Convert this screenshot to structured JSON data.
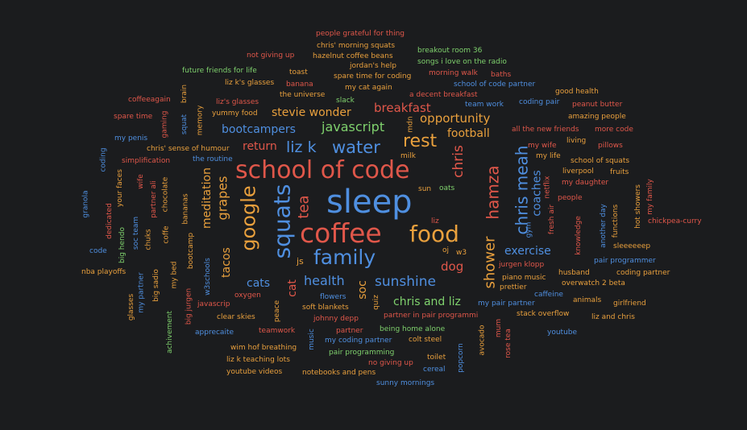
{
  "word_cloud": {
    "words": [
      {
        "text": "people grateful for thing",
        "color": "#e0574a"
      },
      {
        "text": "chris' morning squats",
        "color": "#e9a03d"
      },
      {
        "text": "breakout room 36",
        "color": "#7fd16d"
      },
      {
        "text": "not giving up",
        "color": "#e0574a"
      },
      {
        "text": "hazelnut coffee beans",
        "color": "#e9a03d"
      },
      {
        "text": "songs i love on the radio",
        "color": "#7fd16d"
      },
      {
        "text": "future friends for life",
        "color": "#7fd16d"
      },
      {
        "text": "toast",
        "color": "#e9a03d"
      },
      {
        "text": "jordan's help",
        "color": "#e9a03d"
      },
      {
        "text": "morning walk",
        "color": "#e0574a"
      },
      {
        "text": "baths",
        "color": "#e0574a"
      },
      {
        "text": "liz k's glasses",
        "color": "#e9a03d"
      },
      {
        "text": "banana",
        "color": "#e0574a"
      },
      {
        "text": "spare time for coding",
        "color": "#e9a03d"
      },
      {
        "text": "school of code partner",
        "color": "#4f8fe0"
      },
      {
        "text": "my cat again",
        "color": "#e9a03d"
      },
      {
        "text": "the universe",
        "color": "#e9a03d"
      },
      {
        "text": "a decent breakfast",
        "color": "#e0574a"
      },
      {
        "text": "good health",
        "color": "#e9a03d"
      },
      {
        "text": "coffeeagain",
        "color": "#e0574a"
      },
      {
        "text": "brain",
        "color": "#e9a03d"
      },
      {
        "text": "liz's glasses",
        "color": "#e0574a"
      },
      {
        "text": "slack",
        "color": "#7fd16d"
      },
      {
        "text": "team work",
        "color": "#4f8fe0"
      },
      {
        "text": "coding pair",
        "color": "#4f8fe0"
      },
      {
        "text": "peanut butter",
        "color": "#e0574a"
      },
      {
        "text": "yummy food",
        "color": "#e9a03d"
      },
      {
        "text": "stevie wonder",
        "color": "#e9a03d"
      },
      {
        "text": "breakfast",
        "color": "#e0574a"
      },
      {
        "text": "amazing people",
        "color": "#e9a03d"
      },
      {
        "text": "spare time",
        "color": "#e0574a"
      },
      {
        "text": "gaming",
        "color": "#e0574a"
      },
      {
        "text": "squat",
        "color": "#4f8fe0"
      },
      {
        "text": "memory",
        "color": "#e9a03d"
      },
      {
        "text": "mdn",
        "color": "#e9a03d"
      },
      {
        "text": "opportunity",
        "color": "#e9a03d"
      },
      {
        "text": "bootcampers",
        "color": "#4f8fe0"
      },
      {
        "text": "javascript",
        "color": "#7fd16d"
      },
      {
        "text": "all the new friends",
        "color": "#e0574a"
      },
      {
        "text": "more code",
        "color": "#e0574a"
      },
      {
        "text": "my penis",
        "color": "#4f8fe0"
      },
      {
        "text": "football",
        "color": "#e9a03d"
      },
      {
        "text": "living",
        "color": "#e9a03d"
      },
      {
        "text": "rest",
        "color": "#e9a03d"
      },
      {
        "text": "my wife",
        "color": "#e0574a"
      },
      {
        "text": "pillows",
        "color": "#e0574a"
      },
      {
        "text": "chris' sense of humour",
        "color": "#e9a03d"
      },
      {
        "text": "return",
        "color": "#e0574a"
      },
      {
        "text": "liz k",
        "color": "#4f8fe0"
      },
      {
        "text": "water",
        "color": "#4f8fe0"
      },
      {
        "text": "chris",
        "color": "#e0574a"
      },
      {
        "text": "my life",
        "color": "#e9a03d"
      },
      {
        "text": "coding",
        "color": "#4f8fe0"
      },
      {
        "text": "milk",
        "color": "#e9a03d"
      },
      {
        "text": "school of squats",
        "color": "#e9a03d"
      },
      {
        "text": "simplification",
        "color": "#e0574a"
      },
      {
        "text": "the routine",
        "color": "#4f8fe0"
      },
      {
        "text": "fruits",
        "color": "#e9a03d"
      },
      {
        "text": "liverpool",
        "color": "#e9a03d"
      },
      {
        "text": "school of code",
        "color": "#e0574a"
      },
      {
        "text": "your faces",
        "color": "#e9a03d"
      },
      {
        "text": "wife",
        "color": "#e0574a"
      },
      {
        "text": "meditation",
        "color": "#e9a03d"
      },
      {
        "text": "grapes",
        "color": "#e9a03d"
      },
      {
        "text": "coaches",
        "color": "#4f8fe0"
      },
      {
        "text": "netflix",
        "color": "#e0574a"
      },
      {
        "text": "my daughter",
        "color": "#e0574a"
      },
      {
        "text": "granola",
        "color": "#4f8fe0"
      },
      {
        "text": "partner ali",
        "color": "#e0574a"
      },
      {
        "text": "chocolate",
        "color": "#e9a03d"
      },
      {
        "text": "sun",
        "color": "#e9a03d"
      },
      {
        "text": "oats",
        "color": "#7fd16d"
      },
      {
        "text": "hot showers",
        "color": "#e9a03d"
      },
      {
        "text": "my family",
        "color": "#e0574a"
      },
      {
        "text": "hamza",
        "color": "#e0574a"
      },
      {
        "text": "chris meah",
        "color": "#4f8fe0"
      },
      {
        "text": "sleep",
        "color": "#4f8fe0"
      },
      {
        "text": "people",
        "color": "#e0574a"
      },
      {
        "text": "google",
        "color": "#e9a03d"
      },
      {
        "text": "squats",
        "color": "#4f8fe0"
      },
      {
        "text": "tea",
        "color": "#e0574a"
      },
      {
        "text": "bananas",
        "color": "#e9a03d"
      },
      {
        "text": "dedicated",
        "color": "#e0574a"
      },
      {
        "text": "big hendo",
        "color": "#7fd16d"
      },
      {
        "text": "soc team",
        "color": "#4f8fe0"
      },
      {
        "text": "fresh air",
        "color": "#e0574a"
      },
      {
        "text": "knowledge",
        "color": "#e0574a"
      },
      {
        "text": "another day",
        "color": "#4f8fe0"
      },
      {
        "text": "functions",
        "color": "#e9a03d"
      },
      {
        "text": "chickpea-curry",
        "color": "#e0574a"
      },
      {
        "text": "coffee",
        "color": "#e0574a"
      },
      {
        "text": "food",
        "color": "#e9a03d"
      },
      {
        "text": "chuks",
        "color": "#e9a03d"
      },
      {
        "text": "coffe",
        "color": "#e9a03d"
      },
      {
        "text": "liz",
        "color": "#e0574a"
      },
      {
        "text": "gym",
        "color": "#4f8fe0"
      },
      {
        "text": "tacos",
        "color": "#e9a03d"
      },
      {
        "text": "bootcamp",
        "color": "#e9a03d"
      },
      {
        "text": "family",
        "color": "#4f8fe0"
      },
      {
        "text": "sleeeeeep",
        "color": "#e9a03d"
      },
      {
        "text": "code",
        "color": "#4f8fe0"
      },
      {
        "text": "oj",
        "color": "#e9a03d"
      },
      {
        "text": "w3",
        "color": "#e9a03d"
      },
      {
        "text": "shower",
        "color": "#e9a03d"
      },
      {
        "text": "exercise",
        "color": "#4f8fe0"
      },
      {
        "text": "pair programmer",
        "color": "#4f8fe0"
      },
      {
        "text": "js",
        "color": "#e9a03d"
      },
      {
        "text": "dog",
        "color": "#e0574a"
      },
      {
        "text": "jurgen klopp",
        "color": "#e0574a"
      },
      {
        "text": "nba playoffs",
        "color": "#e9a03d"
      },
      {
        "text": "my partner",
        "color": "#4f8fe0"
      },
      {
        "text": "big sadio",
        "color": "#e9a03d"
      },
      {
        "text": "my bed",
        "color": "#e9a03d"
      },
      {
        "text": "w3schools",
        "color": "#4f8fe0"
      },
      {
        "text": "cats",
        "color": "#4f8fe0"
      },
      {
        "text": "cat",
        "color": "#e0574a"
      },
      {
        "text": "health",
        "color": "#4f8fe0"
      },
      {
        "text": "soc",
        "color": "#e9a03d"
      },
      {
        "text": "sunshine",
        "color": "#4f8fe0"
      },
      {
        "text": "husband",
        "color": "#e9a03d"
      },
      {
        "text": "coding partner",
        "color": "#e9a03d"
      },
      {
        "text": "piano music",
        "color": "#e9a03d"
      },
      {
        "text": "prettier",
        "color": "#e9a03d"
      },
      {
        "text": "overwatch 2 beta",
        "color": "#e9a03d"
      },
      {
        "text": "glasses",
        "color": "#e9a03d"
      },
      {
        "text": "big jurgen",
        "color": "#e0574a"
      },
      {
        "text": "javascrip",
        "color": "#e0574a"
      },
      {
        "text": "oxygen",
        "color": "#e0574a"
      },
      {
        "text": "peace",
        "color": "#e9a03d"
      },
      {
        "text": "flowers",
        "color": "#4f8fe0"
      },
      {
        "text": "quiz",
        "color": "#e9a03d"
      },
      {
        "text": "chris and liz",
        "color": "#7fd16d"
      },
      {
        "text": "caffeine",
        "color": "#4f8fe0"
      },
      {
        "text": "animals",
        "color": "#e9a03d"
      },
      {
        "text": "girlfriend",
        "color": "#e9a03d"
      },
      {
        "text": "soft blankets",
        "color": "#e9a03d"
      },
      {
        "text": "my pair partner",
        "color": "#4f8fe0"
      },
      {
        "text": "clear skies",
        "color": "#e9a03d"
      },
      {
        "text": "partner in pair programmi",
        "color": "#e0574a"
      },
      {
        "text": "stack overflow",
        "color": "#e9a03d"
      },
      {
        "text": "liz and chris",
        "color": "#e9a03d"
      },
      {
        "text": "achivement",
        "color": "#7fd16d"
      },
      {
        "text": "johnny depp",
        "color": "#e0574a"
      },
      {
        "text": "apprecaite",
        "color": "#4f8fe0"
      },
      {
        "text": "teamwork",
        "color": "#e0574a"
      },
      {
        "text": "partner",
        "color": "#e0574a"
      },
      {
        "text": "being home alone",
        "color": "#7fd16d"
      },
      {
        "text": "avocado",
        "color": "#e9a03d"
      },
      {
        "text": "mum",
        "color": "#e0574a"
      },
      {
        "text": "youtube",
        "color": "#4f8fe0"
      },
      {
        "text": "music",
        "color": "#4f8fe0"
      },
      {
        "text": "my coding partner",
        "color": "#4f8fe0"
      },
      {
        "text": "colt steel",
        "color": "#e9a03d"
      },
      {
        "text": "wim hof breathing",
        "color": "#e9a03d"
      },
      {
        "text": "rose tea",
        "color": "#e0574a"
      },
      {
        "text": "pair programming",
        "color": "#7fd16d"
      },
      {
        "text": "toilet",
        "color": "#e9a03d"
      },
      {
        "text": "popcorn",
        "color": "#4f8fe0"
      },
      {
        "text": "liz k teaching lots",
        "color": "#e9a03d"
      },
      {
        "text": "no giving up",
        "color": "#e0574a"
      },
      {
        "text": "cereal",
        "color": "#4f8fe0"
      },
      {
        "text": "youtube videos",
        "color": "#e9a03d"
      },
      {
        "text": "notebooks and pens",
        "color": "#e9a03d"
      },
      {
        "text": "sunny mornings",
        "color": "#4f8fe0"
      }
    ]
  }
}
